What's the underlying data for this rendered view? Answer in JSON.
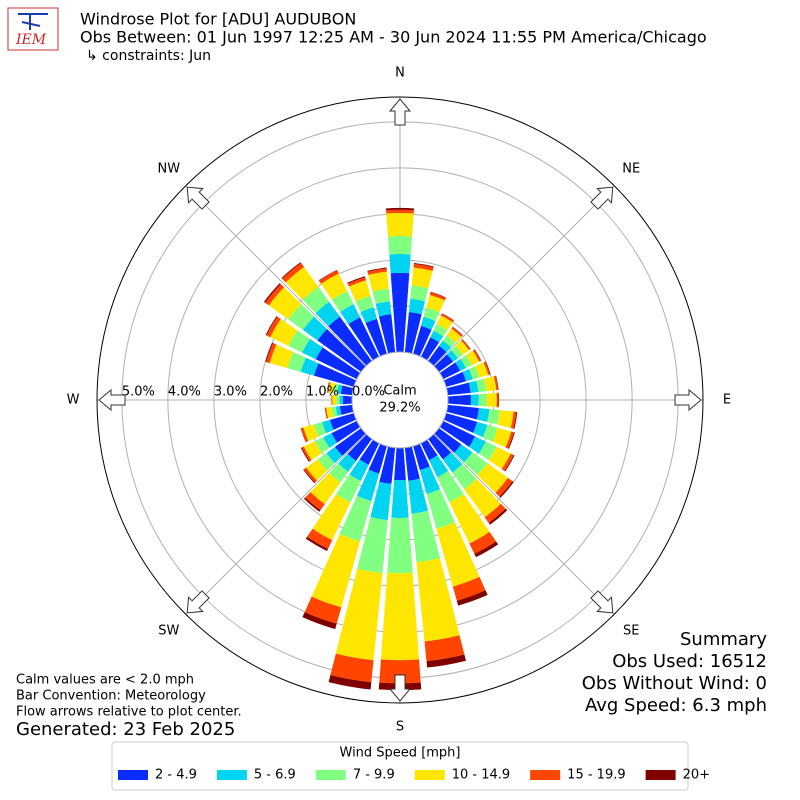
{
  "chart_data": {
    "type": "windrose",
    "logo_text": "IEM",
    "title": "Windrose Plot for [ADU] AUDUBON",
    "subtitle": "Obs Between: 01 Jun 1997 12:25 AM - 30 Jun 2024 11:55 PM America/Chicago",
    "constraints": "↳ constraints: Jun",
    "calm_label": "Calm",
    "calm_value": 29.2,
    "calm_value_label": "29.2%",
    "rlim": [
      0,
      5.54
    ],
    "rticks": [
      {
        "value": 0,
        "label": "0.0%"
      },
      {
        "value": 1,
        "label": "1.0%"
      },
      {
        "value": 2,
        "label": "2.0%"
      },
      {
        "value": 3,
        "label": "3.0%"
      },
      {
        "value": 4,
        "label": "4.0%"
      },
      {
        "value": 5,
        "label": "5.0%"
      }
    ],
    "compass": [
      {
        "label": "N",
        "angle": 0
      },
      {
        "label": "NE",
        "angle": 45
      },
      {
        "label": "E",
        "angle": 90
      },
      {
        "label": "SE",
        "angle": 135
      },
      {
        "label": "S",
        "angle": 180
      },
      {
        "label": "SW",
        "angle": 225
      },
      {
        "label": "W",
        "angle": 270
      },
      {
        "label": "NW",
        "angle": 315
      }
    ],
    "x": [
      0,
      10,
      20,
      30,
      40,
      50,
      60,
      70,
      80,
      90,
      100,
      110,
      120,
      130,
      140,
      150,
      160,
      170,
      180,
      190,
      200,
      210,
      220,
      230,
      240,
      250,
      260,
      270,
      280,
      290,
      300,
      310,
      320,
      330,
      340,
      350
    ],
    "series": [
      {
        "name": "2 - 4.9",
        "color": "#0a2cff",
        "values": [
          1.72,
          0.88,
          0.63,
          0.47,
          0.41,
          0.38,
          0.41,
          0.45,
          0.5,
          0.5,
          0.68,
          0.7,
          0.77,
          0.6,
          0.55,
          0.41,
          0.54,
          0.72,
          0.7,
          0.79,
          0.62,
          0.52,
          0.59,
          0.7,
          0.61,
          0.54,
          0.27,
          0.2,
          0.25,
          0.9,
          0.99,
          1.17,
          1.19,
          0.95,
          0.79,
          0.83
        ]
      },
      {
        "name": "5 - 6.9",
        "color": "#00d4f0",
        "values": [
          0.41,
          0.29,
          0.21,
          0.16,
          0.14,
          0.13,
          0.14,
          0.15,
          0.17,
          0.17,
          0.23,
          0.23,
          0.26,
          0.3,
          0.35,
          0.41,
          0.54,
          0.72,
          0.82,
          0.79,
          0.62,
          0.39,
          0.29,
          0.23,
          0.2,
          0.18,
          0.09,
          0.07,
          0.08,
          0.3,
          0.33,
          0.39,
          0.4,
          0.32,
          0.26,
          0.28
        ]
      },
      {
        "name": "7 - 9.9",
        "color": "#80ff80",
        "values": [
          0.39,
          0.29,
          0.21,
          0.16,
          0.14,
          0.13,
          0.14,
          0.15,
          0.17,
          0.17,
          0.23,
          0.23,
          0.26,
          0.4,
          0.45,
          0.61,
          0.79,
          1.06,
          1.2,
          1.16,
          0.91,
          0.52,
          0.29,
          0.23,
          0.2,
          0.18,
          0.09,
          0.07,
          0.08,
          0.3,
          0.33,
          0.39,
          0.4,
          0.32,
          0.26,
          0.28
        ]
      },
      {
        "name": "10 - 14.9",
        "color": "#ffe600",
        "values": [
          0.5,
          0.39,
          0.28,
          0.21,
          0.18,
          0.17,
          0.18,
          0.2,
          0.22,
          0.22,
          0.3,
          0.31,
          0.34,
          0.55,
          0.75,
          0.99,
          1.3,
          1.73,
          1.89,
          1.9,
          1.49,
          0.91,
          0.58,
          0.31,
          0.27,
          0.24,
          0.12,
          0.09,
          0.11,
          0.4,
          0.44,
          0.52,
          0.53,
          0.42,
          0.35,
          0.37
        ]
      },
      {
        "name": "15 - 19.9",
        "color": "#ff4500",
        "values": [
          0.07,
          0.08,
          0.06,
          0.04,
          0.04,
          0.03,
          0.04,
          0.04,
          0.04,
          0.04,
          0.06,
          0.06,
          0.07,
          0.12,
          0.15,
          0.25,
          0.32,
          0.43,
          0.5,
          0.48,
          0.37,
          0.21,
          0.16,
          0.06,
          0.05,
          0.05,
          0.02,
          0.02,
          0.02,
          0.08,
          0.09,
          0.1,
          0.11,
          0.08,
          0.07,
          0.07
        ]
      },
      {
        "name": "20+",
        "color": "#800000",
        "values": [
          0.04,
          0.02,
          0.01,
          0.01,
          0.01,
          0.01,
          0.01,
          0.01,
          0.01,
          0.01,
          0.02,
          0.02,
          0.02,
          0.03,
          0.05,
          0.08,
          0.11,
          0.14,
          0.15,
          0.16,
          0.12,
          0.05,
          0.04,
          0.02,
          0.02,
          0.01,
          0.01,
          0,
          0.01,
          0.02,
          0.02,
          0.03,
          0.02,
          0.01,
          0.02,
          0.02
        ]
      }
    ],
    "legend_title": "Wind Speed [mph]",
    "notes": [
      "Calm values are < 2.0 mph",
      "Bar Convention: Meteorology",
      "Flow arrows relative to plot center."
    ],
    "generated": "Generated: 23 Feb 2025",
    "summary": [
      "Summary",
      "Obs Used: 16512",
      "Obs Without Wind: 0",
      "Avg Speed: 6.3 mph"
    ]
  }
}
